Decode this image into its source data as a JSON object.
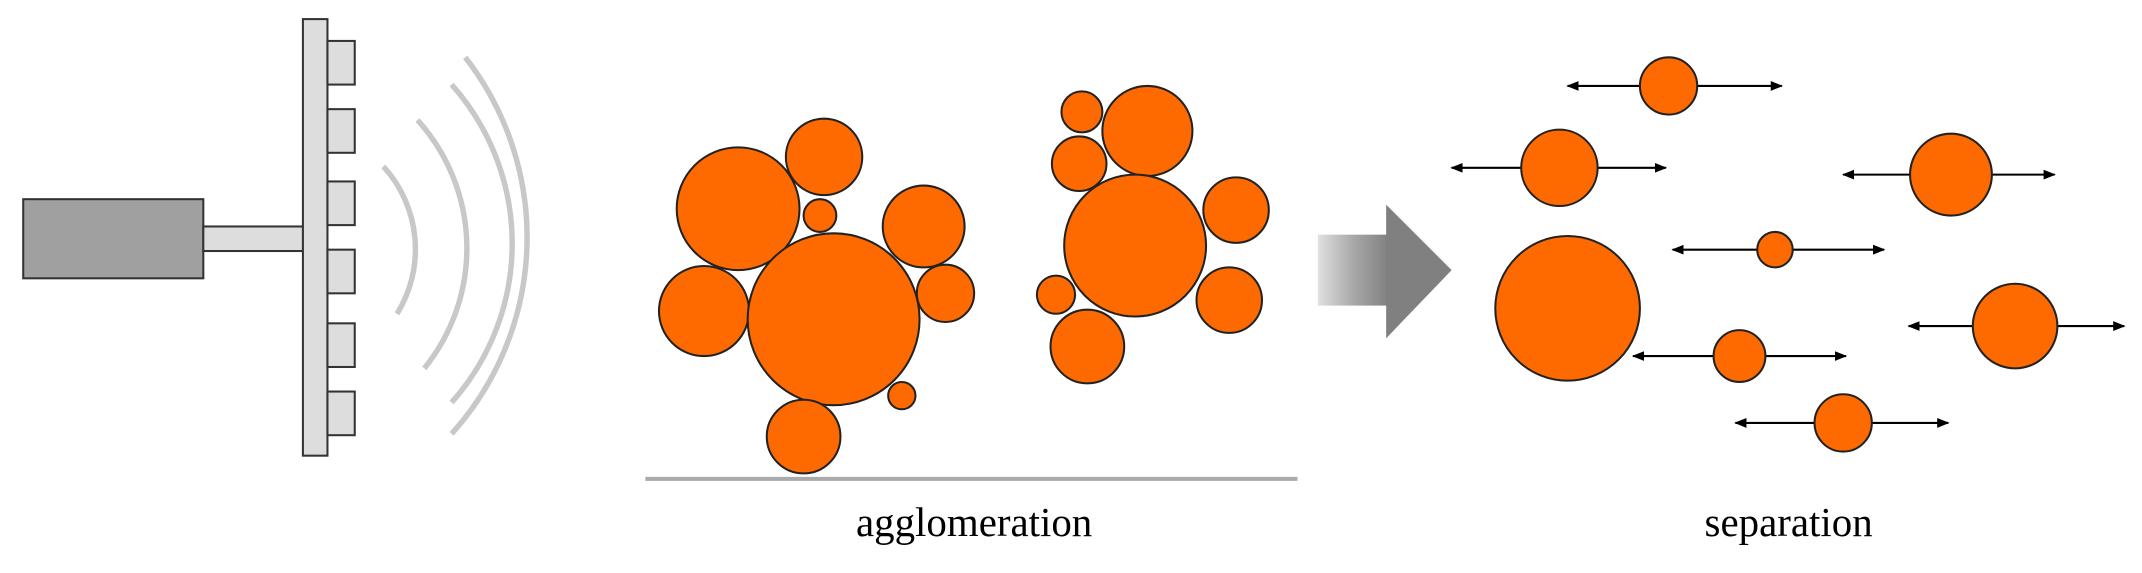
{
  "labels": {
    "agglomeration": "agglomeration",
    "separation": "separation"
  }
}
